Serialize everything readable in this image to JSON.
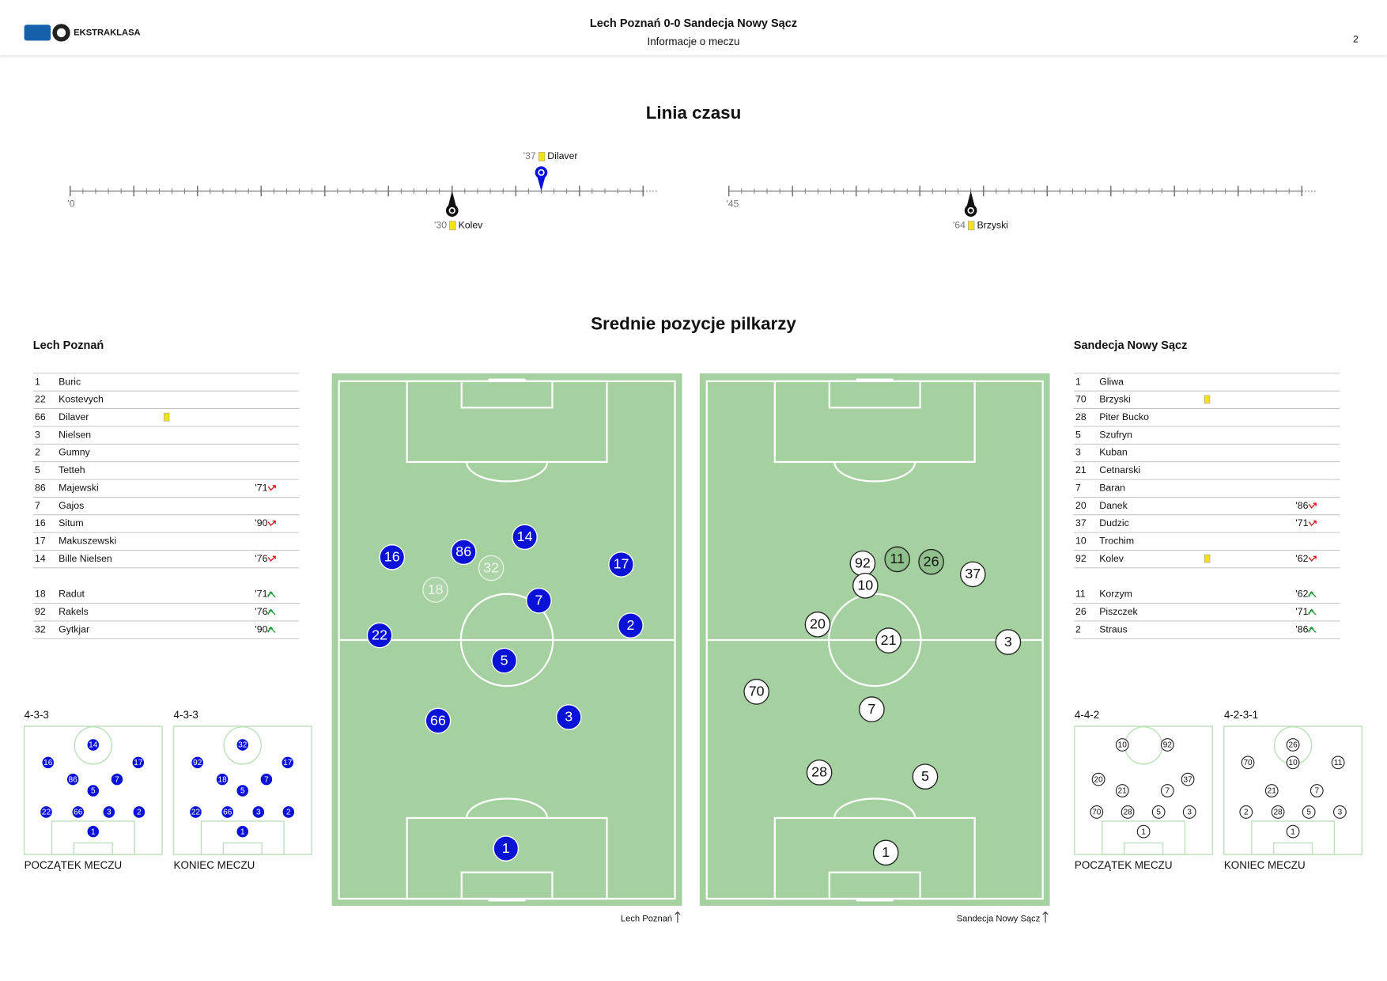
{
  "header": {
    "logo": "EKSTRAKLASA",
    "title": "Lech Poznań 0-0 Sandecja Nowy Sącz",
    "subtitle": "Informacje o meczu",
    "page": "2"
  },
  "timeline": {
    "title": "Linia czasu",
    "halves": [
      {
        "label": "'0",
        "start": 0,
        "end": 45
      },
      {
        "label": "'45",
        "start": 45,
        "end": 90
      }
    ],
    "events": [
      {
        "minute": 30,
        "label": "'30",
        "player": "Kolev",
        "team": 1,
        "card": "yellow"
      },
      {
        "minute": 37,
        "label": "'37",
        "player": "Dilaver",
        "team": 0,
        "card": "yellow"
      },
      {
        "minute": 64,
        "label": "'64",
        "player": "Brzyski",
        "team": 1,
        "card": "yellow"
      }
    ]
  },
  "positions": {
    "title": "Srednie pozycje pilkarzy",
    "phase_labels": [
      "POCZĄTEK MECZU",
      "KONIEC MECZU"
    ],
    "teams": [
      {
        "name": "Lech Poznań",
        "color": "#0b12d8",
        "ink": "#ffffff",
        "lineup": [
          {
            "number": 1,
            "name": "Buric"
          },
          {
            "number": 22,
            "name": "Kostevych"
          },
          {
            "number": 66,
            "name": "Dilaver",
            "yellow_card": true
          },
          {
            "number": 3,
            "name": "Nielsen"
          },
          {
            "number": 2,
            "name": "Gumny"
          },
          {
            "number": 5,
            "name": "Tetteh"
          },
          {
            "number": 86,
            "name": "Majewski",
            "sub": "'71"
          },
          {
            "number": 7,
            "name": "Gajos"
          },
          {
            "number": 16,
            "name": "Situm",
            "sub": "'90"
          },
          {
            "number": 17,
            "name": "Makuszewski"
          },
          {
            "number": 14,
            "name": "Bille Nielsen",
            "sub": "'76"
          }
        ],
        "bench": [
          {
            "number": 18,
            "name": "Radut",
            "sub": "'71"
          },
          {
            "number": 92,
            "name": "Rakels",
            "sub": "'76"
          },
          {
            "number": 32,
            "name": "Gytkjar",
            "sub": "'90"
          }
        ],
        "formations": [
          {
            "name": "4-3-3",
            "players": [
              [
                14,
                50,
                14.5
              ],
              [
                16,
                17.3,
                28.3
              ],
              [
                17,
                82.7,
                28.3
              ],
              [
                86,
                35.3,
                41.4
              ],
              [
                7,
                67.3,
                41.4
              ],
              [
                5,
                50,
                50.3
              ],
              [
                22,
                16,
                66.9
              ],
              [
                66,
                39.1,
                66.9
              ],
              [
                3,
                61.5,
                66.9
              ],
              [
                2,
                83.3,
                66.9
              ],
              [
                1,
                50,
                82.1
              ]
            ]
          },
          {
            "name": "4-3-3",
            "players": [
              [
                32,
                50,
                14.5
              ],
              [
                92,
                17.3,
                28.3
              ],
              [
                17,
                82.7,
                28.3
              ],
              [
                18,
                35.3,
                41.4
              ],
              [
                7,
                67.3,
                41.4
              ],
              [
                5,
                50,
                50.3
              ],
              [
                22,
                16,
                66.9
              ],
              [
                66,
                39.1,
                66.9
              ],
              [
                3,
                61.5,
                66.9
              ],
              [
                2,
                83.3,
                66.9
              ],
              [
                1,
                50,
                82.1
              ]
            ]
          }
        ],
        "average": [
          [
            16,
            15.8,
            34.0
          ],
          [
            86,
            37.1,
            33.0
          ],
          [
            14,
            55.3,
            30.1
          ],
          [
            17,
            84.0,
            35.4
          ],
          [
            7,
            59.5,
            42.4
          ],
          [
            22,
            12.1,
            49.1
          ],
          [
            2,
            86.8,
            47.2
          ],
          [
            5,
            49.2,
            54.0
          ],
          [
            66,
            29.5,
            65.6
          ],
          [
            3,
            68.4,
            64.9
          ],
          [
            1,
            49.7,
            90.3
          ]
        ],
        "average_subs": [
          [
            32,
            45.3,
            36.1
          ],
          [
            18,
            28.7,
            40.3
          ]
        ]
      },
      {
        "name": "Sandecja Nowy Sącz",
        "color": "#ffffff",
        "ink": "#111111",
        "lineup": [
          {
            "number": 1,
            "name": "Gliwa"
          },
          {
            "number": 70,
            "name": "Brzyski",
            "yellow_card": true
          },
          {
            "number": 28,
            "name": "Piter Bucko"
          },
          {
            "number": 5,
            "name": "Szufryn"
          },
          {
            "number": 3,
            "name": "Kuban"
          },
          {
            "number": 21,
            "name": "Cetnarski"
          },
          {
            "number": 7,
            "name": "Baran"
          },
          {
            "number": 20,
            "name": "Danek",
            "sub": "'86"
          },
          {
            "number": 37,
            "name": "Dudzic",
            "sub": "'71"
          },
          {
            "number": 10,
            "name": "Trochim"
          },
          {
            "number": 92,
            "name": "Kolev",
            "yellow_card": true,
            "sub": "'62"
          }
        ],
        "bench": [
          {
            "number": 11,
            "name": "Korzym",
            "sub": "'62"
          },
          {
            "number": 26,
            "name": "Piszczek",
            "sub": "'71"
          },
          {
            "number": 2,
            "name": "Straus",
            "sub": "'86"
          }
        ],
        "formations": [
          {
            "name": "4-4-2",
            "players": [
              [
                10,
                34.6,
                14.5
              ],
              [
                92,
                67.3,
                14.5
              ],
              [
                20,
                17.3,
                41.4
              ],
              [
                37,
                82.1,
                41.4
              ],
              [
                21,
                34.6,
                50.3
              ],
              [
                7,
                67.3,
                50.3
              ],
              [
                70,
                16,
                66.9
              ],
              [
                28,
                38.5,
                66.9
              ],
              [
                5,
                60.9,
                66.9
              ],
              [
                3,
                83.3,
                66.9
              ],
              [
                1,
                50,
                82.1
              ]
            ]
          },
          {
            "name": "4-2-3-1",
            "players": [
              [
                26,
                50,
                14.5
              ],
              [
                70,
                17.3,
                28.3
              ],
              [
                10,
                50,
                28.3
              ],
              [
                11,
                82.7,
                28.3
              ],
              [
                21,
                34.6,
                50.3
              ],
              [
                7,
                67.3,
                50.3
              ],
              [
                2,
                16,
                66.9
              ],
              [
                28,
                39.1,
                66.9
              ],
              [
                5,
                61.5,
                66.9
              ],
              [
                3,
                84,
                66.9
              ],
              [
                1,
                50,
                82.1
              ]
            ]
          }
        ],
        "average": [
          [
            92,
            46.4,
            35.2
          ],
          [
            37,
            79.2,
            37.3
          ],
          [
            10,
            47.2,
            39.5
          ],
          [
            20,
            33.0,
            47.0
          ],
          [
            21,
            54.1,
            50.1
          ],
          [
            3,
            89.7,
            50.4
          ],
          [
            70,
            14.8,
            60.0
          ],
          [
            7,
            49.1,
            63.4
          ],
          [
            28,
            33.5,
            75.6
          ],
          [
            5,
            65.0,
            76.4
          ],
          [
            1,
            53.3,
            91.1
          ]
        ],
        "average_subs": [
          [
            11,
            56.7,
            34.4
          ],
          [
            26,
            66.8,
            34.9
          ]
        ]
      }
    ]
  }
}
